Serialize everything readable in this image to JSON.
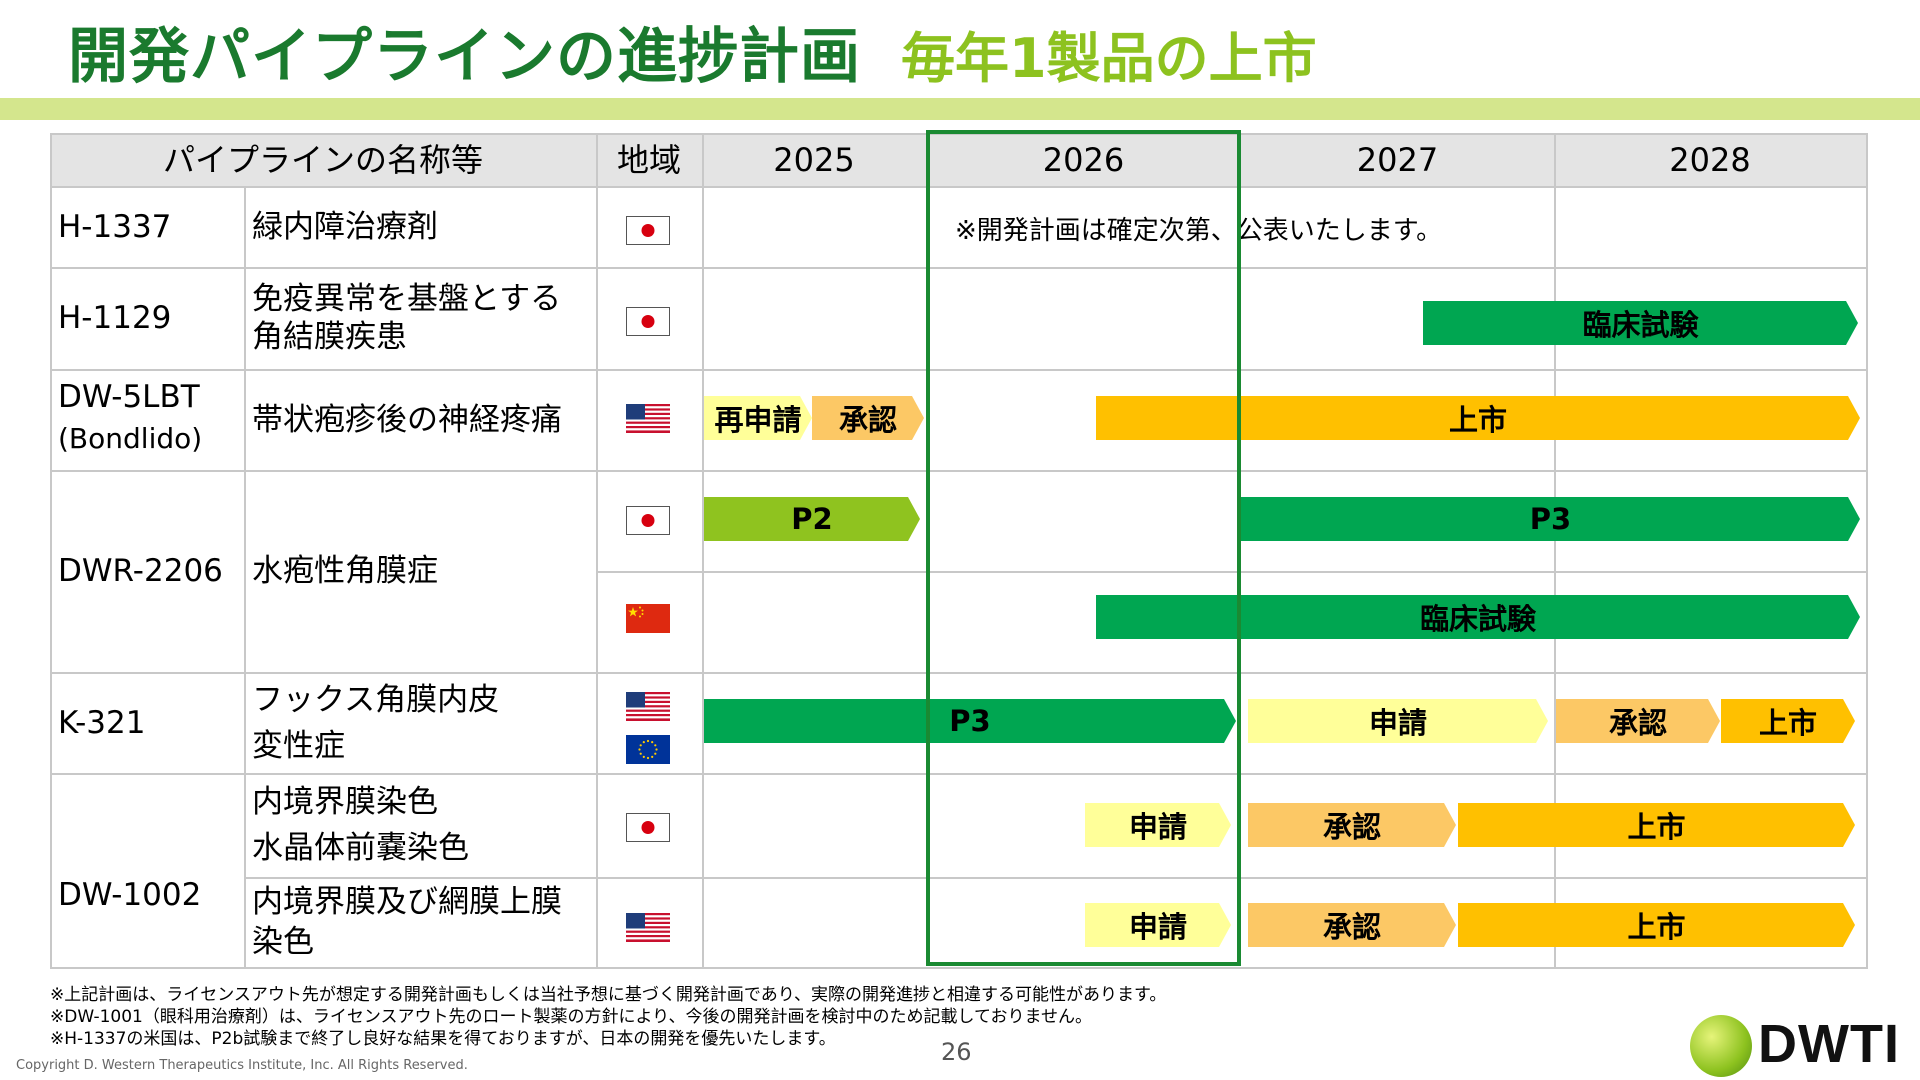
{
  "title": "開発パイプラインの進捗計画",
  "subtitle": "毎年1製品の上市",
  "headers": {
    "pipeline": "パイプラインの名称等",
    "region": "地域",
    "y2025": "2025",
    "y2026": "2026",
    "y2027": "2027",
    "y2028": "2028"
  },
  "rows": [
    {
      "code": "H-1337",
      "indication": "緑内障治療剤"
    },
    {
      "code": "H-1129",
      "indication": "免疫異常を基盤とする\n角結膜疾患"
    },
    {
      "code": "DW-5LBT",
      "code2": "(Bondlido)",
      "indication": "帯状疱疹後の神経疼痛"
    },
    {
      "code": "DWR-2206",
      "indication": "水疱性角膜症"
    },
    {
      "code": "K-321",
      "indication": "フックス角膜内皮\n変性症"
    },
    {
      "code": "DW-1002",
      "indication_a": "内境界膜染色\n水晶体前嚢染色",
      "indication_b": "内境界膜及び網膜上膜\n染色"
    }
  ],
  "note_h1337": "※開発計画は確定次第、公表いたします。",
  "bars": {
    "h1129_clinical": "臨床試験",
    "dw5lbt_resubmit": "再申請",
    "dw5lbt_approval": "承認",
    "dw5lbt_launch": "上市",
    "dwr_jp_p2": "P2",
    "dwr_jp_p3": "P3",
    "dwr_cn_clinical": "臨床試験",
    "k321_p3": "P3",
    "k321_filing": "申請",
    "k321_approval": "承認",
    "k321_launch": "上市",
    "dw1002a_filing": "申請",
    "dw1002a_approval": "承認",
    "dw1002a_launch": "上市",
    "dw1002b_filing": "申請",
    "dw1002b_approval": "承認",
    "dw1002b_launch": "上市"
  },
  "colors": {
    "clinical_green": "#00a651",
    "p2_lime": "#8fc31f",
    "filing_yellow": "#ffff99",
    "approval_orange": "#fcc865",
    "launch_gold": "#ffc000",
    "title_green": "#1a7a2e",
    "subtitle_green": "#8dc21f"
  },
  "flags": [
    "japan-flag",
    "usa-flag",
    "china-flag",
    "eu-flag"
  ],
  "footnotes": [
    "※上記計画は、ライセンスアウト先が想定する開発計画もしくは当社予想に基づく開発計画であり、実際の開発進捗と相違する可能性があります。",
    "※DW-1001（眼科用治療剤）は、ライセンスアウト先のロート製薬の方針により、今後の開発計画を検討中のため記載しておりません。",
    "※H-1337の米国は、P2b試験まで終了し良好な結果を得ておりますが、日本の開発を優先いたします。"
  ],
  "page_number": "26",
  "copyright": "Copyright D. Western Therapeutics Institute, Inc. All Rights Reserved.",
  "logo_text": "DWTI"
}
